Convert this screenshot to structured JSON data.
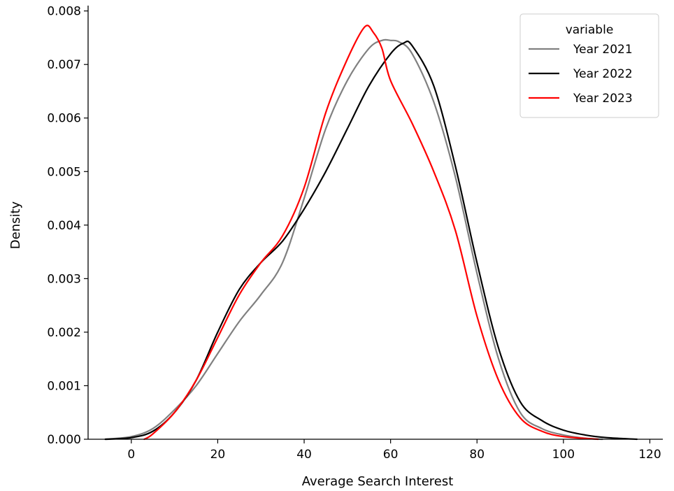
{
  "chart_data": {
    "type": "line",
    "title": "",
    "xlabel": "Average Search Interest",
    "ylabel": "Density",
    "xlim": [
      -10,
      123
    ],
    "ylim": [
      0,
      0.0081
    ],
    "x_ticks": [
      0,
      20,
      40,
      60,
      80,
      100,
      120
    ],
    "x_tick_labels": [
      "0",
      "20",
      "40",
      "60",
      "80",
      "100",
      "120"
    ],
    "y_ticks": [
      0,
      0.001,
      0.002,
      0.003,
      0.004,
      0.005,
      0.006,
      0.007,
      0.008
    ],
    "y_tick_labels": [
      "0.000",
      "0.001",
      "0.002",
      "0.003",
      "0.004",
      "0.005",
      "0.006",
      "0.007",
      "0.008"
    ],
    "grid": false,
    "legend": {
      "title": "variable",
      "position": "top-right"
    },
    "series": [
      {
        "name": "Year 2021",
        "color": "#808080",
        "points": [
          [
            -6,
            0.0
          ],
          [
            0,
            5e-05
          ],
          [
            5,
            0.0002
          ],
          [
            10,
            0.00055
          ],
          [
            15,
            0.001
          ],
          [
            20,
            0.0016
          ],
          [
            25,
            0.0022
          ],
          [
            30,
            0.0027
          ],
          [
            35,
            0.0033
          ],
          [
            40,
            0.0045
          ],
          [
            45,
            0.0058
          ],
          [
            50,
            0.0067
          ],
          [
            55,
            0.0073
          ],
          [
            58,
            0.00745
          ],
          [
            60,
            0.00745
          ],
          [
            62,
            0.00742
          ],
          [
            65,
            0.0072
          ],
          [
            70,
            0.0063
          ],
          [
            75,
            0.0049
          ],
          [
            80,
            0.0031
          ],
          [
            85,
            0.0015
          ],
          [
            90,
            0.0005
          ],
          [
            95,
            0.0002
          ],
          [
            100,
            8e-05
          ],
          [
            105,
            2e-05
          ],
          [
            109,
            0.0
          ]
        ]
      },
      {
        "name": "Year 2022",
        "color": "#000000",
        "points": [
          [
            -6,
            0.0
          ],
          [
            0,
            3e-05
          ],
          [
            5,
            0.00015
          ],
          [
            10,
            0.0005
          ],
          [
            15,
            0.0011
          ],
          [
            20,
            0.002
          ],
          [
            25,
            0.0028
          ],
          [
            30,
            0.0033
          ],
          [
            35,
            0.0037
          ],
          [
            40,
            0.0043
          ],
          [
            45,
            0.005
          ],
          [
            50,
            0.0058
          ],
          [
            55,
            0.0066
          ],
          [
            60,
            0.0072
          ],
          [
            63,
            0.0074
          ],
          [
            65,
            0.00735
          ],
          [
            70,
            0.0066
          ],
          [
            75,
            0.0051
          ],
          [
            80,
            0.0033
          ],
          [
            85,
            0.0017
          ],
          [
            90,
            0.0007
          ],
          [
            95,
            0.00035
          ],
          [
            100,
            0.00017
          ],
          [
            105,
            8e-05
          ],
          [
            110,
            3e-05
          ],
          [
            117,
            0.0
          ]
        ]
      },
      {
        "name": "Year 2023",
        "color": "#ff0000",
        "points": [
          [
            3,
            0.0
          ],
          [
            5,
            0.0001
          ],
          [
            10,
            0.0005
          ],
          [
            15,
            0.0011
          ],
          [
            20,
            0.0019
          ],
          [
            25,
            0.0027
          ],
          [
            30,
            0.0033
          ],
          [
            35,
            0.0038
          ],
          [
            40,
            0.0047
          ],
          [
            45,
            0.0061
          ],
          [
            50,
            0.0071
          ],
          [
            54,
            0.0077
          ],
          [
            56,
            0.0076
          ],
          [
            58,
            0.0073
          ],
          [
            60,
            0.0067
          ],
          [
            65,
            0.0059
          ],
          [
            70,
            0.005
          ],
          [
            75,
            0.0039
          ],
          [
            80,
            0.0023
          ],
          [
            85,
            0.0011
          ],
          [
            90,
            0.0004
          ],
          [
            95,
            0.00015
          ],
          [
            100,
            5e-05
          ],
          [
            108,
            0.0
          ]
        ]
      }
    ]
  }
}
